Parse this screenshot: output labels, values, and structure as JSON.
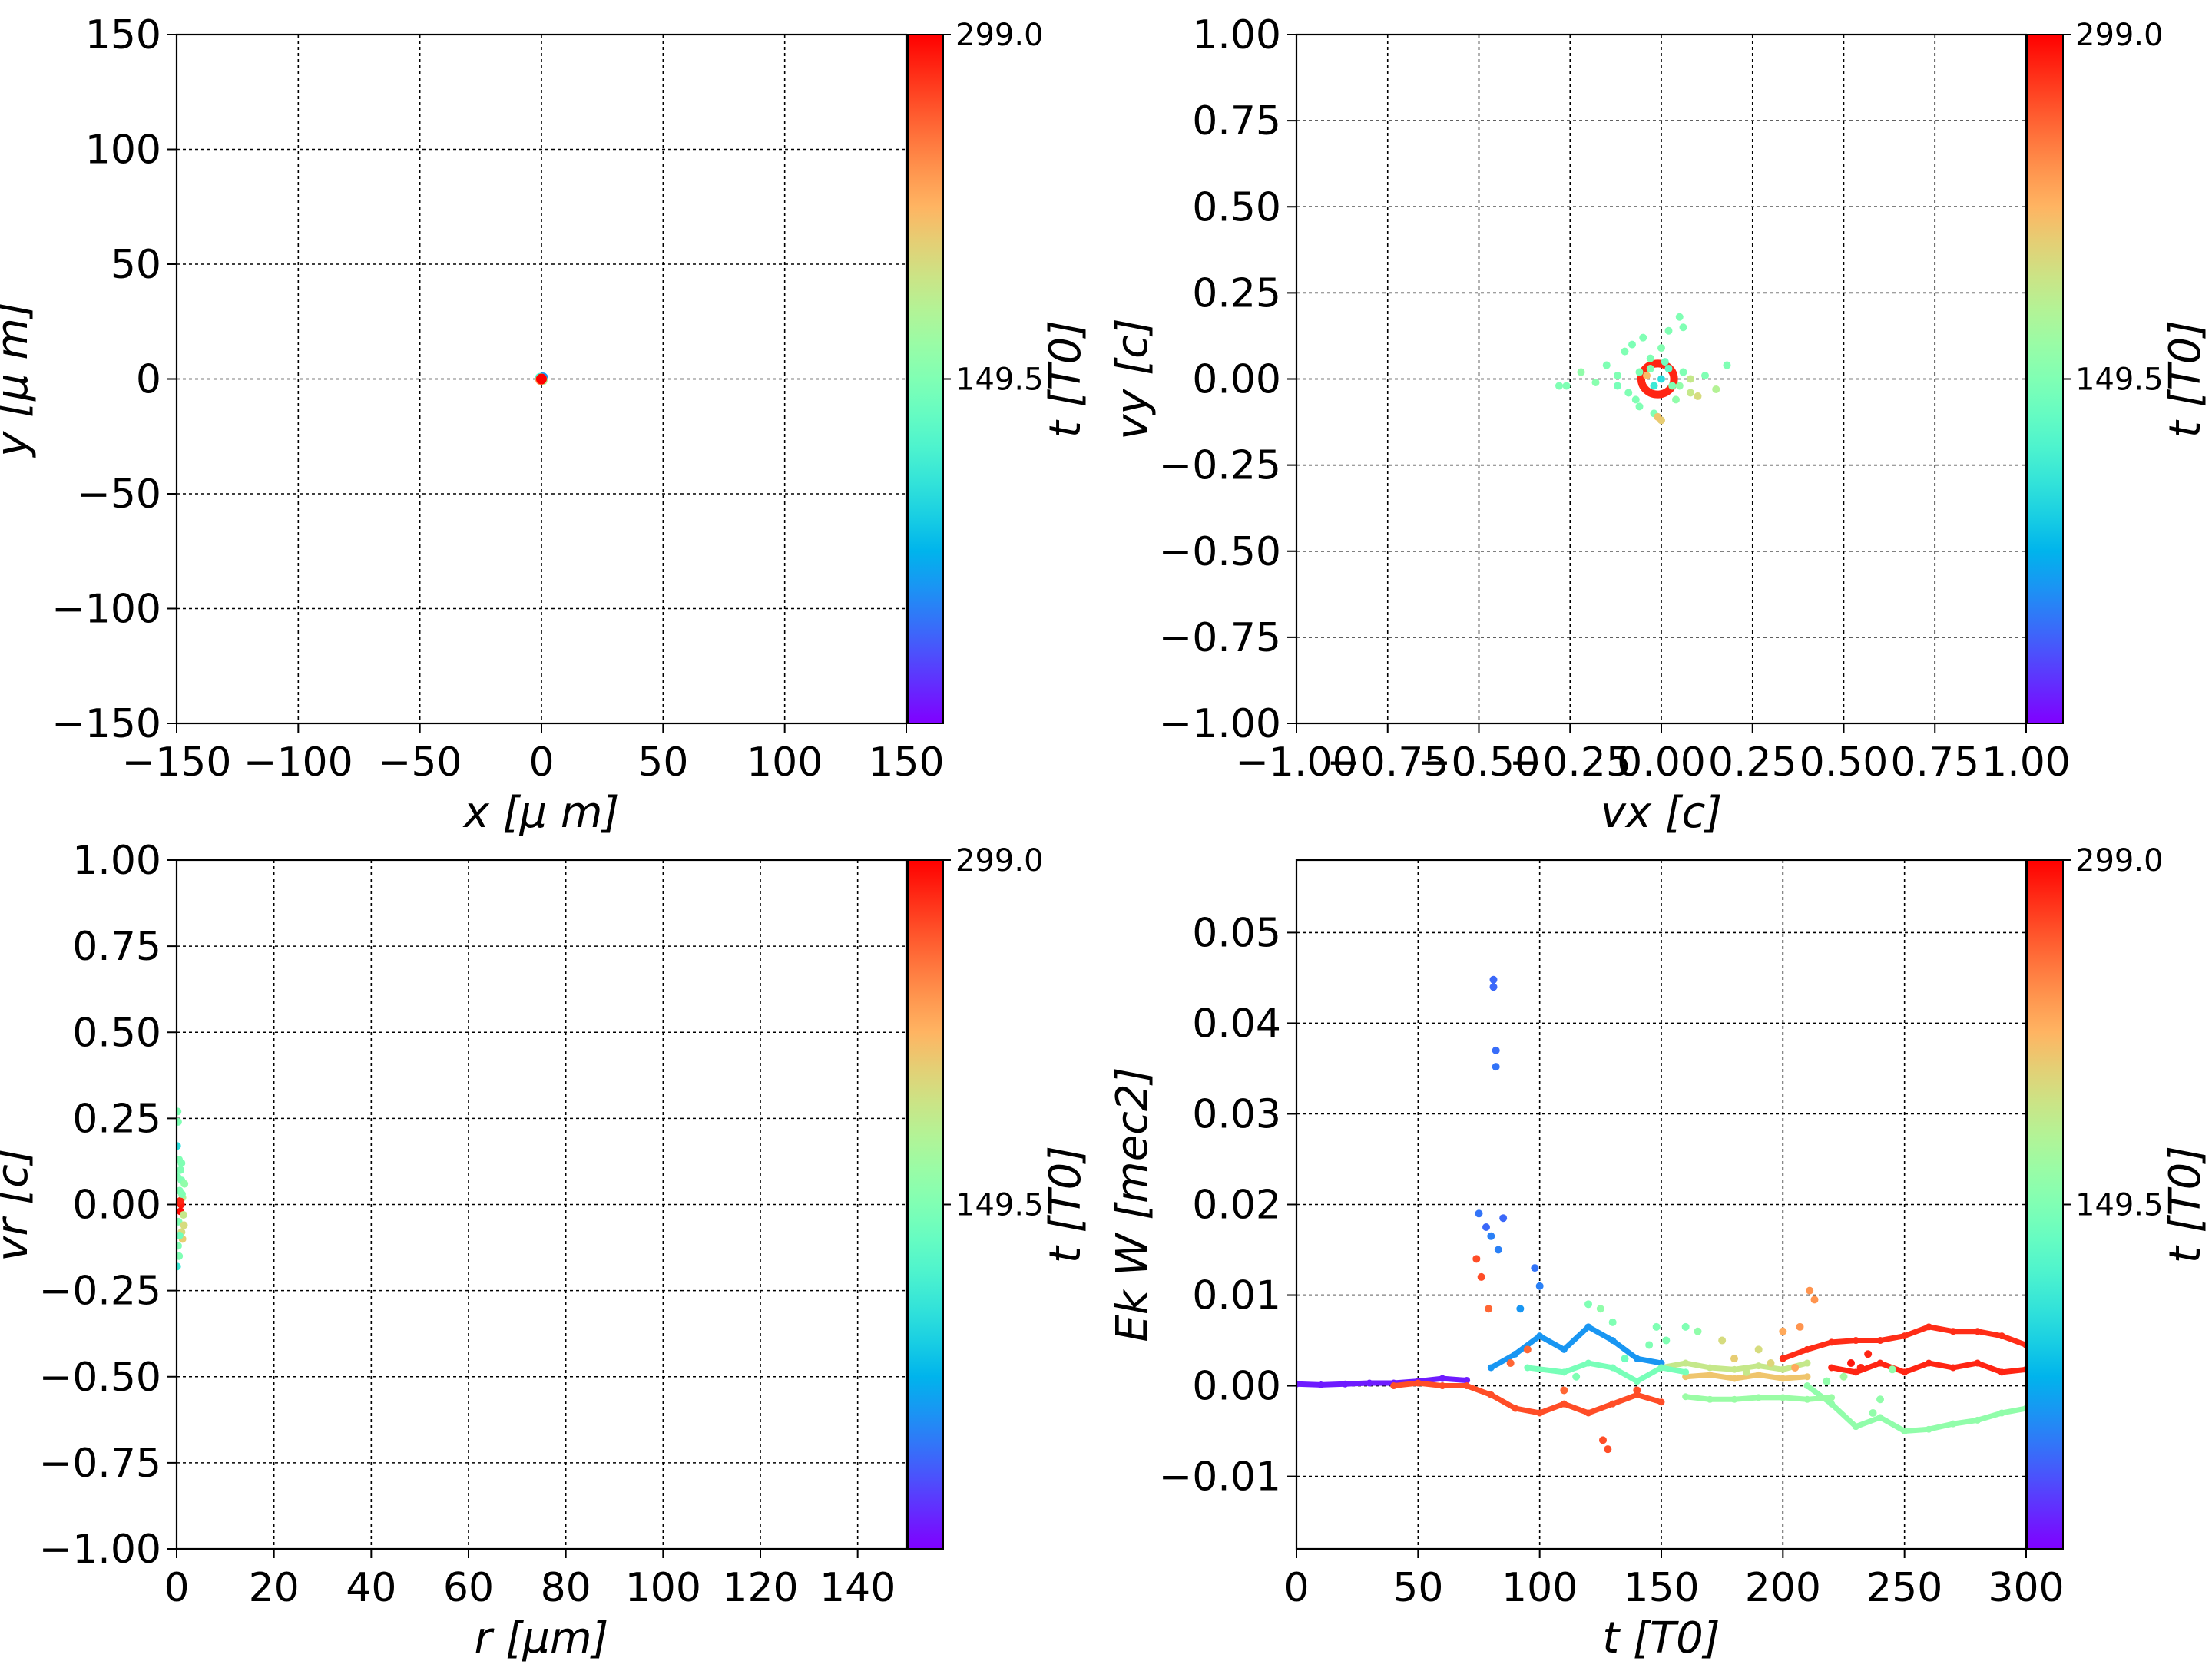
{
  "colormap": "rainbow",
  "chart_data": [
    {
      "type": "scatter",
      "xlabel": "x  [μ m]",
      "ylabel": "y  [μ m]",
      "xlim": [
        -150,
        150
      ],
      "ylim": [
        -150,
        150
      ],
      "xticks": [
        "−150",
        "−100",
        "−50",
        "0",
        "50",
        "100",
        "150"
      ],
      "yticks": [
        "−150",
        "−100",
        "−50",
        "0",
        "50",
        "100",
        "150"
      ],
      "grid": true,
      "colorbar": {
        "label": "t [T0]",
        "min": 0,
        "max": 299,
        "ticks": [
          "149.5",
          "299.0"
        ]
      },
      "points": [
        [
          0,
          0,
          0
        ],
        [
          0.5,
          0.5,
          60
        ],
        [
          -0.5,
          0.3,
          120
        ],
        [
          0.3,
          -0.5,
          180
        ],
        [
          -0.3,
          -0.3,
          240
        ],
        [
          0,
          0,
          299
        ]
      ]
    },
    {
      "type": "scatter",
      "xlabel": "vx [c]",
      "ylabel": "vy [c]",
      "xlim": [
        -1,
        1
      ],
      "ylim": [
        -1,
        1
      ],
      "xticks": [
        "−1.00",
        "−0.75",
        "−0.50",
        "−0.25",
        "0.00",
        "0.25",
        "0.50",
        "0.75",
        "1.00"
      ],
      "yticks": [
        "−1.00",
        "−0.75",
        "−0.50",
        "−0.25",
        "0.00",
        "0.25",
        "0.50",
        "0.75",
        "1.00"
      ],
      "grid": true,
      "colorbar": {
        "label": "t [T0]",
        "min": 0,
        "max": 299,
        "ticks": [
          "149.5",
          "299.0"
        ]
      },
      "points": [
        [
          -0.28,
          -0.02,
          150
        ],
        [
          -0.26,
          -0.02,
          150
        ],
        [
          -0.22,
          0.02,
          160
        ],
        [
          -0.18,
          -0.01,
          155
        ],
        [
          -0.15,
          0.04,
          150
        ],
        [
          -0.12,
          -0.02,
          145
        ],
        [
          -0.1,
          0.08,
          150
        ],
        [
          -0.08,
          0.1,
          148
        ],
        [
          -0.09,
          -0.04,
          150
        ],
        [
          -0.06,
          -0.08,
          150
        ],
        [
          -0.05,
          0.12,
          150
        ],
        [
          -0.03,
          0.06,
          150
        ],
        [
          -0.02,
          -0.1,
          150
        ],
        [
          0.0,
          0.09,
          152
        ],
        [
          0.02,
          0.14,
          150
        ],
        [
          0.05,
          0.18,
          150
        ],
        [
          0.06,
          0.15,
          150
        ],
        [
          0.03,
          -0.02,
          150
        ],
        [
          0.04,
          -0.06,
          160
        ],
        [
          0.08,
          -0.04,
          190
        ],
        [
          0.1,
          -0.05,
          200
        ],
        [
          0.08,
          0.0,
          190
        ],
        [
          0.18,
          0.04,
          150
        ],
        [
          0.0,
          -0.12,
          210
        ],
        [
          -0.01,
          -0.11,
          215
        ],
        [
          0.02,
          0.03,
          130
        ],
        [
          -0.02,
          -0.02,
          110
        ],
        [
          0.0,
          0.0,
          100
        ],
        [
          -0.04,
          0.01,
          220
        ],
        [
          0.01,
          0.05,
          140
        ],
        [
          -0.06,
          0.02,
          150
        ],
        [
          -0.07,
          -0.06,
          150
        ],
        [
          0.06,
          0.02,
          150
        ],
        [
          0.12,
          0.01,
          150
        ],
        [
          0.15,
          -0.03,
          180
        ],
        [
          -0.12,
          0.01,
          150
        ],
        [
          0.05,
          -0.02,
          160
        ],
        [
          -0.03,
          0.03,
          150
        ]
      ],
      "ring": {
        "cx": -0.01,
        "cy": 0.0,
        "r": 0.045,
        "t": 285
      }
    },
    {
      "type": "scatter",
      "xlabel": "r [μm]",
      "ylabel": "vr [c]",
      "xlim": [
        0,
        150
      ],
      "ylim": [
        -1,
        1
      ],
      "xticks": [
        "0",
        "20",
        "40",
        "60",
        "80",
        "100",
        "120",
        "140"
      ],
      "yticks": [
        "−1.00",
        "−0.75",
        "−0.50",
        "−0.25",
        "0.00",
        "0.25",
        "0.50",
        "0.75",
        "1.00"
      ],
      "grid": true,
      "colorbar": {
        "label": "t [T0]",
        "min": 0,
        "max": 299,
        "ticks": [
          "149.5",
          "299.0"
        ]
      },
      "points": [
        [
          0.2,
          0.27,
          150
        ],
        [
          0.3,
          0.24,
          150
        ],
        [
          0.1,
          0.17,
          100
        ],
        [
          0.5,
          0.13,
          150
        ],
        [
          0.8,
          0.1,
          150
        ],
        [
          1.0,
          0.07,
          150
        ],
        [
          0.6,
          0.04,
          150
        ],
        [
          1.2,
          0.02,
          180
        ],
        [
          0.4,
          -0.05,
          150
        ],
        [
          1.0,
          -0.08,
          200
        ],
        [
          1.5,
          -0.06,
          200
        ],
        [
          0.3,
          -0.12,
          150
        ],
        [
          0.5,
          -0.15,
          150
        ],
        [
          0.1,
          -0.18,
          110
        ],
        [
          1.2,
          -0.1,
          210
        ],
        [
          0.9,
          0.0,
          290
        ],
        [
          0.8,
          -0.02,
          295
        ],
        [
          0.7,
          0.01,
          285
        ],
        [
          1.1,
          0.03,
          150
        ],
        [
          1.6,
          0.06,
          160
        ],
        [
          0.2,
          0.08,
          150
        ],
        [
          1.4,
          -0.03,
          190
        ],
        [
          0.6,
          -0.09,
          140
        ],
        [
          1.0,
          0.12,
          150
        ]
      ]
    },
    {
      "type": "line",
      "xlabel": "t [T0]",
      "ylabel": "Ek W [mec2]",
      "xlim": [
        0,
        300
      ],
      "ylim": [
        -0.018,
        0.058
      ],
      "xticks": [
        "0",
        "50",
        "100",
        "150",
        "200",
        "250",
        "300"
      ],
      "yticks": [
        "−0.01",
        "0.00",
        "0.01",
        "0.02",
        "0.03",
        "0.04",
        "0.05"
      ],
      "grid": true,
      "colorbar": {
        "label": "t [T0]",
        "min": 0,
        "max": 299,
        "ticks": [
          "149.5",
          "299.0"
        ]
      },
      "series": [
        {
          "t": 282,
          "points": [
            [
              200,
              0.003
            ],
            [
              210,
              0.004
            ],
            [
              220,
              0.0048
            ],
            [
              230,
              0.005
            ],
            [
              240,
              0.005
            ],
            [
              250,
              0.0055
            ],
            [
              260,
              0.0065
            ],
            [
              270,
              0.006
            ],
            [
              280,
              0.006
            ],
            [
              290,
              0.0055
            ],
            [
              300,
              0.0045
            ]
          ]
        },
        {
          "t": 285,
          "points": [
            [
              220,
              0.002
            ],
            [
              230,
              0.0015
            ],
            [
              240,
              0.0025
            ],
            [
              250,
              0.0015
            ],
            [
              260,
              0.0025
            ],
            [
              270,
              0.002
            ],
            [
              280,
              0.0025
            ],
            [
              290,
              0.0015
            ],
            [
              300,
              0.0018
            ]
          ]
        },
        {
          "t": 160,
          "points": [
            [
              210,
              0.0
            ],
            [
              220,
              -0.002
            ],
            [
              230,
              -0.0045
            ],
            [
              240,
              -0.0035
            ],
            [
              250,
              -0.005
            ],
            [
              260,
              -0.0048
            ],
            [
              270,
              -0.0042
            ],
            [
              280,
              -0.0038
            ],
            [
              290,
              -0.003
            ],
            [
              300,
              -0.0025
            ]
          ]
        },
        {
          "t": 165,
          "points": [
            [
              160,
              -0.0012
            ],
            [
              170,
              -0.0015
            ],
            [
              180,
              -0.0015
            ],
            [
              190,
              -0.0013
            ],
            [
              200,
              -0.0013
            ],
            [
              210,
              -0.0015
            ],
            [
              220,
              -0.0013
            ]
          ]
        },
        {
          "t": 10,
          "points": [
            [
              0,
              0.0002
            ],
            [
              10,
              0.0001
            ],
            [
              20,
              0.0002
            ],
            [
              30,
              0.0003
            ],
            [
              40,
              0.0003
            ],
            [
              50,
              0.0005
            ],
            [
              60,
              0.0008
            ],
            [
              70,
              0.0006
            ]
          ]
        },
        {
          "t": 270,
          "points": [
            [
              40,
              0.0
            ],
            [
              50,
              0.0003
            ],
            [
              60,
              0.0
            ],
            [
              70,
              0.0
            ],
            [
              80,
              -0.001
            ],
            [
              90,
              -0.0025
            ],
            [
              100,
              -0.003
            ],
            [
              110,
              -0.002
            ],
            [
              120,
              -0.003
            ],
            [
              130,
              -0.002
            ],
            [
              140,
              -0.001
            ],
            [
              150,
              -0.0018
            ]
          ]
        },
        {
          "t": 60,
          "points": [
            [
              80,
              0.002
            ],
            [
              90,
              0.0035
            ],
            [
              100,
              0.0055
            ],
            [
              110,
              0.004
            ],
            [
              120,
              0.0065
            ],
            [
              130,
              0.005
            ],
            [
              140,
              0.003
            ],
            [
              150,
              0.0025
            ]
          ]
        },
        {
          "t": 190,
          "points": [
            [
              150,
              0.002
            ],
            [
              160,
              0.0025
            ],
            [
              170,
              0.002
            ],
            [
              180,
              0.0018
            ],
            [
              190,
              0.0022
            ],
            [
              200,
              0.0018
            ],
            [
              210,
              0.0025
            ]
          ]
        },
        {
          "t": 215,
          "points": [
            [
              160,
              0.001
            ],
            [
              170,
              0.0012
            ],
            [
              180,
              0.0008
            ],
            [
              190,
              0.0012
            ],
            [
              200,
              0.0008
            ],
            [
              210,
              0.001
            ]
          ]
        },
        {
          "t": 145,
          "points": [
            [
              95,
              0.002
            ],
            [
              110,
              0.0015
            ],
            [
              120,
              0.0025
            ],
            [
              130,
              0.002
            ],
            [
              140,
              0.0005
            ],
            [
              150,
              0.002
            ],
            [
              160,
              0.0015
            ]
          ]
        }
      ],
      "scatter": [
        [
          81,
          0.0448,
          40
        ],
        [
          81,
          0.044,
          40
        ],
        [
          82,
          0.037,
          42
        ],
        [
          82,
          0.0352,
          45
        ],
        [
          75,
          0.019,
          45
        ],
        [
          78,
          0.0175,
          40
        ],
        [
          85,
          0.0185,
          40
        ],
        [
          74,
          0.014,
          270
        ],
        [
          76,
          0.012,
          270
        ],
        [
          80,
          0.0165,
          50
        ],
        [
          83,
          0.015,
          50
        ],
        [
          79,
          0.0085,
          260
        ],
        [
          98,
          0.013,
          45
        ],
        [
          100,
          0.011,
          50
        ],
        [
          120,
          0.009,
          150
        ],
        [
          125,
          0.0085,
          160
        ],
        [
          130,
          0.007,
          150
        ],
        [
          128,
          -0.007,
          270
        ],
        [
          126,
          -0.006,
          270
        ],
        [
          148,
          0.0065,
          150
        ],
        [
          152,
          0.005,
          150
        ],
        [
          160,
          0.0065,
          150
        ],
        [
          165,
          0.006,
          160
        ],
        [
          211,
          0.0105,
          240
        ],
        [
          213,
          0.0095,
          240
        ],
        [
          200,
          0.006,
          230
        ],
        [
          190,
          0.004,
          200
        ],
        [
          175,
          0.005,
          200
        ],
        [
          235,
          0.0035,
          285
        ],
        [
          240,
          -0.0015,
          160
        ],
        [
          237,
          -0.003,
          160
        ],
        [
          88,
          0.0025,
          260
        ],
        [
          92,
          0.0085,
          60
        ],
        [
          95,
          0.004,
          260
        ],
        [
          110,
          -0.0005,
          260
        ],
        [
          115,
          0.001,
          150
        ],
        [
          135,
          0.003,
          140
        ],
        [
          140,
          -0.0005,
          270
        ],
        [
          145,
          0.0045,
          150
        ],
        [
          180,
          0.003,
          210
        ],
        [
          185,
          0.0015,
          190
        ],
        [
          195,
          0.0025,
          205
        ],
        [
          205,
          0.002,
          230
        ],
        [
          207,
          0.0065,
          240
        ],
        [
          218,
          0.0005,
          160
        ],
        [
          225,
          0.001,
          170
        ],
        [
          228,
          0.0025,
          290
        ],
        [
          232,
          0.002,
          285
        ],
        [
          245,
          0.0018,
          160
        ]
      ]
    }
  ]
}
